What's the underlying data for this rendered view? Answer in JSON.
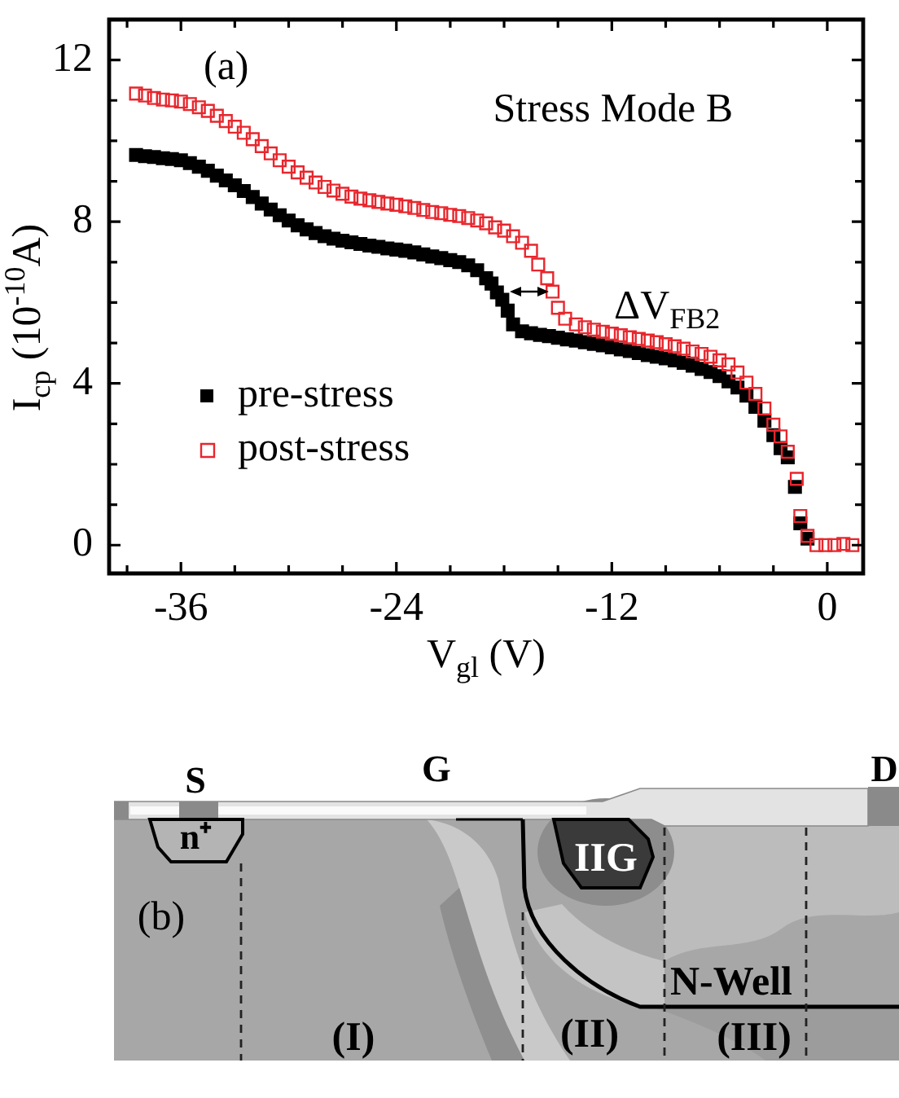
{
  "chart_data": [
    {
      "type": "scatter",
      "title": "Stress Mode B",
      "xlabel": "V$_{gl}$ (V)",
      "ylabel": "I$_{cp}$ (10$^{-10}$A)",
      "annotations": [
        "(a)",
        "ΔV$_{FB2}$"
      ],
      "xlim": [
        -40,
        2
      ],
      "xticks": [
        {
          "value": -39,
          "label": null
        },
        -36,
        {
          "value": -33,
          "label": null
        },
        {
          "value": -30,
          "label": null
        },
        {
          "value": -27,
          "label": null
        },
        -24,
        {
          "value": -21,
          "label": null
        },
        {
          "value": -18,
          "label": null
        },
        {
          "value": -15,
          "label": null
        },
        -12,
        {
          "value": -9,
          "label": null
        },
        {
          "value": -6,
          "label": null
        },
        {
          "value": -3,
          "label": null
        },
        0
      ],
      "ylim": [
        -0.7,
        13
      ],
      "yticks": [
        0,
        {
          "value": 1,
          "label": null
        },
        {
          "value": 2,
          "label": null
        },
        {
          "value": 3,
          "label": null
        },
        4,
        {
          "value": 5,
          "label": null
        },
        {
          "value": 6,
          "label": null
        },
        {
          "value": 7,
          "label": null
        },
        8,
        {
          "value": 9,
          "label": null
        },
        {
          "value": 10,
          "label": null
        },
        {
          "value": 11,
          "label": null
        },
        12
      ],
      "legend": "bottom left",
      "marker": "square",
      "series": [
        {
          "name": "pre-stress",
          "color": "#000000",
          "x": [
            -38.5,
            -38,
            -37.5,
            -37,
            -36.5,
            -36,
            -35.5,
            -35,
            -34.5,
            -34,
            -33.5,
            -33,
            -32.5,
            -32,
            -31.5,
            -31,
            -30.5,
            -30,
            -29.5,
            -29,
            -28.5,
            -28,
            -27.5,
            -27,
            -26.5,
            -26,
            -25.5,
            -25,
            -24.5,
            -24,
            -23.5,
            -23,
            -22.5,
            -22,
            -21.5,
            -21,
            -20.5,
            -20,
            -19.5,
            -19,
            -18.7,
            -18.4,
            -18.1,
            -17.8,
            -17.5,
            -17,
            -16.5,
            -16,
            -15.5,
            -15,
            -14.5,
            -14,
            -13.5,
            -13,
            -12.5,
            -12,
            -11.5,
            -11,
            -10.5,
            -10,
            -9.5,
            -9,
            -8.5,
            -8,
            -7.5,
            -7,
            -6.5,
            -6,
            -5.5,
            -5,
            -4.5,
            -4,
            -3.5,
            -3,
            -2.6,
            -2.2,
            -1.8,
            -1.5,
            -1.1
          ],
          "values": [
            9.65,
            9.62,
            9.6,
            9.57,
            9.55,
            9.52,
            9.45,
            9.36,
            9.26,
            9.14,
            9.02,
            8.9,
            8.76,
            8.61,
            8.45,
            8.3,
            8.16,
            8.03,
            7.91,
            7.81,
            7.72,
            7.64,
            7.58,
            7.53,
            7.49,
            7.45,
            7.41,
            7.38,
            7.34,
            7.31,
            7.28,
            7.24,
            7.19,
            7.14,
            7.1,
            7.05,
            7.0,
            6.92,
            6.8,
            6.6,
            6.47,
            6.25,
            6.07,
            5.8,
            5.46,
            5.29,
            5.24,
            5.2,
            5.17,
            5.13,
            5.09,
            5.06,
            5.02,
            4.98,
            4.94,
            4.89,
            4.84,
            4.8,
            4.75,
            4.7,
            4.66,
            4.62,
            4.57,
            4.51,
            4.44,
            4.36,
            4.28,
            4.18,
            4.05,
            3.9,
            3.7,
            3.42,
            3.08,
            2.72,
            2.4,
            2.17,
            1.44,
            0.54,
            0.16
          ]
        },
        {
          "name": "post-stress",
          "color": "#e8262d",
          "x": [
            -38.5,
            -38,
            -37.5,
            -37,
            -36.5,
            -36,
            -35.5,
            -35,
            -34.5,
            -34,
            -33.5,
            -33,
            -32.5,
            -32,
            -31.5,
            -31,
            -30.5,
            -30,
            -29.5,
            -29,
            -28.5,
            -28,
            -27.5,
            -27,
            -26.5,
            -26,
            -25.5,
            -25,
            -24.5,
            -24,
            -23.5,
            -23,
            -22.5,
            -22,
            -21.5,
            -21,
            -20.5,
            -20,
            -19.5,
            -19,
            -18.5,
            -18,
            -17.5,
            -17,
            -16.5,
            -16.1,
            -15.6,
            -15.3,
            -15,
            -14.6,
            -14,
            -13.5,
            -13,
            -12.5,
            -12,
            -11.5,
            -11,
            -10.5,
            -10,
            -9.5,
            -9,
            -8.5,
            -8,
            -7.5,
            -7,
            -6.5,
            -6,
            -5.5,
            -5,
            -4.5,
            -4,
            -3.5,
            -3,
            -2.6,
            -2.2,
            -1.7,
            -1.5,
            -1.1,
            -0.6,
            -0.1,
            0.4,
            0.9,
            1.4
          ],
          "values": [
            11.17,
            11.12,
            11.06,
            11.02,
            11.0,
            10.97,
            10.91,
            10.83,
            10.74,
            10.62,
            10.49,
            10.35,
            10.2,
            10.04,
            9.87,
            9.69,
            9.52,
            9.36,
            9.22,
            9.09,
            8.97,
            8.86,
            8.77,
            8.69,
            8.62,
            8.57,
            8.53,
            8.49,
            8.45,
            8.42,
            8.38,
            8.34,
            8.29,
            8.24,
            8.21,
            8.17,
            8.14,
            8.09,
            8.03,
            7.96,
            7.86,
            7.78,
            7.64,
            7.48,
            7.28,
            6.94,
            6.6,
            6.27,
            5.87,
            5.6,
            5.46,
            5.39,
            5.33,
            5.28,
            5.23,
            5.19,
            5.14,
            5.1,
            5.06,
            5.02,
            4.97,
            4.92,
            4.86,
            4.79,
            4.73,
            4.66,
            4.57,
            4.47,
            4.27,
            4.02,
            3.74,
            3.38,
            2.98,
            2.69,
            2.31,
            1.64,
            0.72,
            0.23,
            0,
            0,
            0,
            0.03,
            0
          ]
        }
      ]
    },
    {
      "type": "other",
      "annotations": [
        "S",
        "G",
        "D",
        "n⁺",
        "IIG",
        "(b)",
        "N-Well",
        "(I)",
        "(II)",
        "(III)"
      ]
    }
  ]
}
